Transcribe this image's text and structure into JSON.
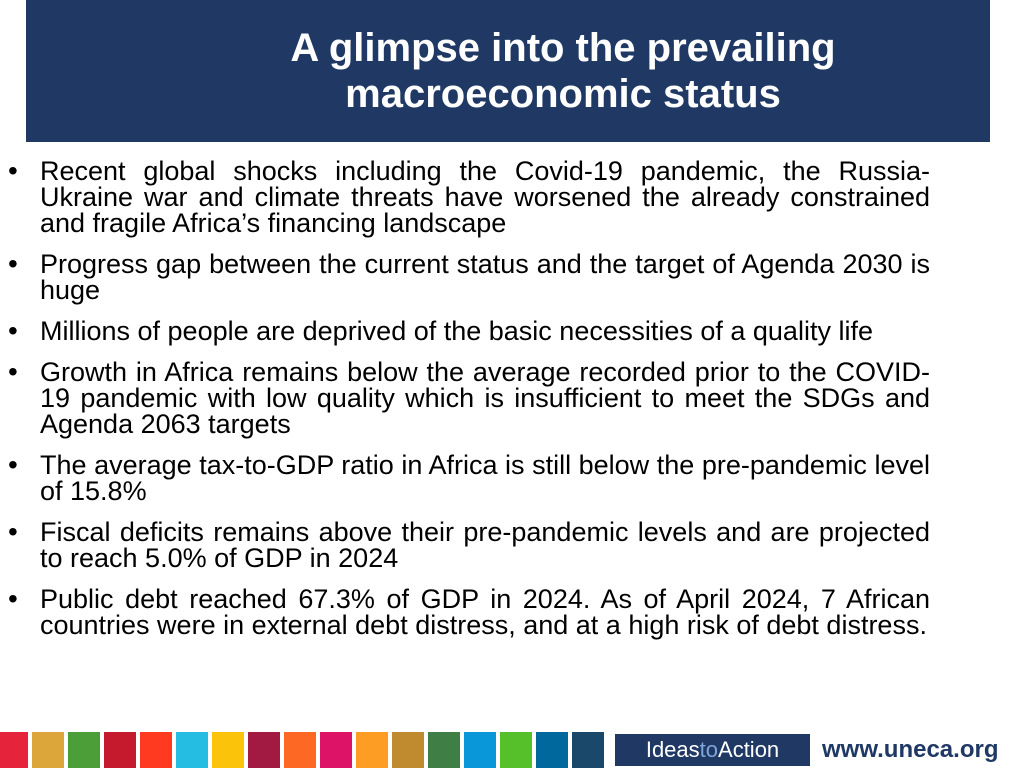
{
  "slide": {
    "title": "A glimpse into the prevailing macroeconomic status",
    "bullet_symbol": "•",
    "bullets": [
      "Recent global shocks including the Covid-19 pandemic, the Russia-Ukraine war and climate threats have worsened the already constrained and fragile Africa’s financing landscape",
      "Progress gap between the current status and the target of Agenda 2030 is huge",
      "Millions of people are deprived of the basic necessities of a quality life",
      "Growth in Africa remains below the average recorded prior to the COVID-19 pandemic with low quality which is insufficient to meet the SDGs and Agenda 2063 targets",
      "The average tax-to-GDP ratio in Africa is still below the pre-pandemic level of 15.8%",
      "Fiscal deficits remains above their pre-pandemic levels and are projected to reach 5.0% of GDP in 2024",
      "Public debt reached 67.3% of GDP in 2024. As of April 2024, 7 African countries were in external debt distress, and  at a high risk of debt distress."
    ]
  },
  "footer": {
    "tagline_part1": "Ideas",
    "tagline_part2": "to",
    "tagline_part3": "Action",
    "url": "www.uneca.org",
    "sdg_colors": [
      "#e5243b",
      "#dda63a",
      "#4c9f38",
      "#c5192d",
      "#ff3a21",
      "#26bde2",
      "#fcc30b",
      "#a21942",
      "#fd6925",
      "#dd1367",
      "#fd9d24",
      "#bf8b2e",
      "#3f7e44",
      "#0a97d9",
      "#56c02b",
      "#00689d",
      "#19486a"
    ],
    "theme_color": "#1f3864"
  }
}
